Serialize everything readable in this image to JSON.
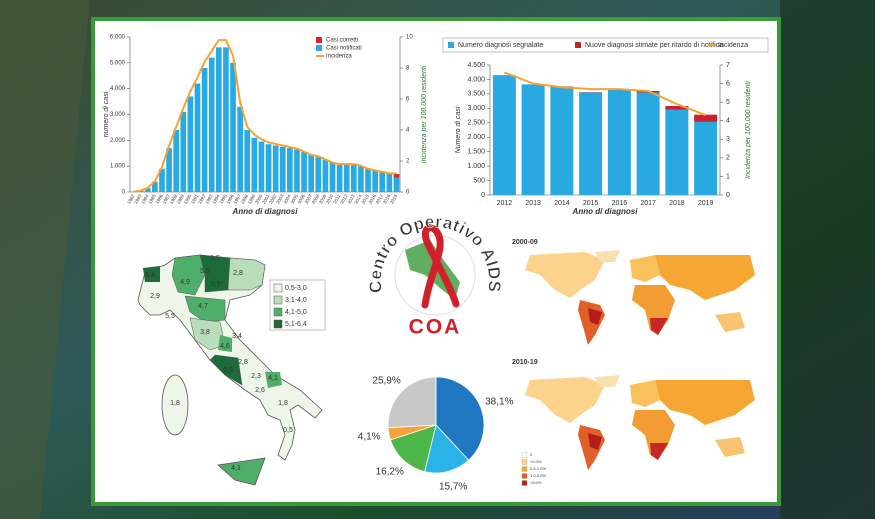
{
  "chart_data": [
    {
      "type": "bar",
      "x_label": "Anno di diagnosi",
      "y_label": "numero di casi",
      "y2_label": "Incidenza per 100.000 residenti",
      "categories": [
        "1982",
        "1983",
        "1984",
        "1985",
        "1986",
        "1987",
        "1988",
        "1989",
        "1990",
        "1991",
        "1992",
        "1993",
        "1994",
        "1995",
        "1996",
        "1997",
        "1998",
        "1999",
        "2000",
        "2001",
        "2002",
        "2003",
        "2004",
        "2005",
        "2006",
        "2007",
        "2008",
        "2009",
        "2010",
        "2011",
        "2012",
        "2013",
        "2014",
        "2015",
        "2016",
        "2017",
        "2018",
        "2019"
      ],
      "series": [
        {
          "name": "Casi notificati",
          "color": "#29abe2",
          "type": "bar",
          "values": [
            10,
            50,
            150,
            400,
            900,
            1700,
            2400,
            3100,
            3700,
            4200,
            4800,
            5200,
            5600,
            5600,
            5000,
            3300,
            2400,
            2100,
            1950,
            1850,
            1800,
            1750,
            1700,
            1650,
            1550,
            1450,
            1350,
            1250,
            1150,
            1050,
            1050,
            1100,
            1000,
            900,
            850,
            800,
            700,
            550
          ]
        },
        {
          "name": "Casi corretti",
          "color": "#e0202a",
          "type": "bar",
          "values": [
            0,
            0,
            0,
            0,
            0,
            0,
            0,
            0,
            0,
            0,
            0,
            0,
            0,
            0,
            0,
            0,
            0,
            0,
            0,
            0,
            0,
            0,
            0,
            0,
            0,
            0,
            0,
            0,
            0,
            0,
            0,
            0,
            0,
            0,
            0,
            10,
            40,
            150
          ]
        },
        {
          "name": "Incidenza",
          "color": "#f7a233",
          "type": "line",
          "axis": "y2",
          "values": [
            0.02,
            0.09,
            0.26,
            0.7,
            1.6,
            3.0,
            4.2,
            5.4,
            6.5,
            7.4,
            8.4,
            9.1,
            9.8,
            9.8,
            8.8,
            5.8,
            4.2,
            3.7,
            3.4,
            3.2,
            3.1,
            3.0,
            2.9,
            2.8,
            2.6,
            2.4,
            2.3,
            2.1,
            1.9,
            1.8,
            1.8,
            1.8,
            1.7,
            1.5,
            1.4,
            1.3,
            1.2,
            1.2
          ]
        }
      ],
      "ylim": [
        0,
        6000
      ],
      "yticks": [
        0,
        {
          "value": 1000,
          "label": "1.000"
        },
        {
          "value": 2000,
          "label": "2.000"
        },
        {
          "value": 3000,
          "label": "3.000"
        },
        {
          "value": 4000,
          "label": "4.000"
        },
        {
          "value": 5000,
          "label": "5.000"
        },
        {
          "value": 6000,
          "label": "6.000"
        }
      ],
      "y2lim": [
        0,
        10
      ],
      "y2ticks": [
        0,
        2,
        4,
        6,
        8,
        10
      ]
    },
    {
      "type": "bar",
      "x_label": "Anno di diagnosi",
      "y_label": "Numero di casi",
      "y2_label": "Incidenza per 100.000 residenti",
      "categories": [
        "2012",
        "2013",
        "2014",
        "2015",
        "2016",
        "2017",
        "2018",
        "2019"
      ],
      "series": [
        {
          "name": "Numero diagnosi segnalate",
          "color": "#29a9e0",
          "type": "bar",
          "values": [
            4150,
            3830,
            3750,
            3550,
            3650,
            3550,
            2950,
            2530
          ]
        },
        {
          "name": "Nuove diagnosi stimate per ritardo di notifica",
          "color": "#c8202f",
          "type": "bar",
          "values": [
            0,
            0,
            10,
            10,
            20,
            50,
            130,
            250
          ]
        },
        {
          "name": "Incidenza",
          "color": "#f7a233",
          "type": "line",
          "axis": "y2",
          "values": [
            6.6,
            6.0,
            5.8,
            5.7,
            5.7,
            5.6,
            4.9,
            4.3
          ]
        }
      ],
      "ylim": [
        0,
        4500
      ],
      "yticks": [
        0,
        500,
        {
          "value": 1000,
          "label": "1.000"
        },
        {
          "value": 1500,
          "label": "1.500"
        },
        {
          "value": 2000,
          "label": "2.000"
        },
        {
          "value": 2500,
          "label": "2.500"
        },
        {
          "value": 3000,
          "label": "3.000"
        },
        {
          "value": 3500,
          "label": "3.500"
        },
        {
          "value": 4000,
          "label": "4.000"
        },
        {
          "value": 4500,
          "label": "4.500"
        }
      ],
      "y2lim": [
        0,
        7
      ],
      "y2ticks": [
        0,
        1,
        2,
        3,
        4,
        5,
        6,
        7
      ]
    },
    {
      "type": "pie",
      "values": [
        38.1,
        15.7,
        16.2,
        4.1,
        25.9
      ],
      "value_labels": [
        "38,1%",
        "15,7%",
        "16,2%",
        "4,1%",
        "25,9%"
      ],
      "colors": [
        "#1f78c1",
        "#29b3e6",
        "#4cb748",
        "#f6a13a",
        "#c8c8c8"
      ]
    }
  ],
  "logo": {
    "ring_text": "Centro Operativo AIDS",
    "acronym": "COA"
  },
  "italy_map": {
    "legend": [
      {
        "label": "0,5-3,0",
        "color": "#eef5e9"
      },
      {
        "label": "3,1-4,0",
        "color": "#b9dcb9"
      },
      {
        "label": "4,1-5,0",
        "color": "#4fae6a"
      },
      {
        "label": "5,1-6,4",
        "color": "#1e6b3a"
      }
    ],
    "labels": [
      "6,4",
      "5,9",
      "1,5",
      "2,8",
      "5,5*",
      "4,9",
      "2,9",
      "4,7",
      "5,5",
      "3,8",
      "3,4",
      "4,6",
      "2,8",
      "2,3",
      "4,1",
      "5,5",
      "2,6",
      "1,8",
      "1,8",
      "0,5",
      "4,1"
    ]
  },
  "world_maps": {
    "panels": [
      "2000-09",
      "2010-19"
    ],
    "legend": [
      {
        "label": "0",
        "color": "#ffffff"
      },
      {
        "label": "<0.4%",
        "color": "#fbd38d"
      },
      {
        "label": "0.4-1.0%",
        "color": "#f6a733"
      },
      {
        "label": "1.0-5.0%",
        "color": "#e0602a"
      },
      {
        "label": ">5.0%",
        "color": "#b71c1c"
      }
    ]
  }
}
